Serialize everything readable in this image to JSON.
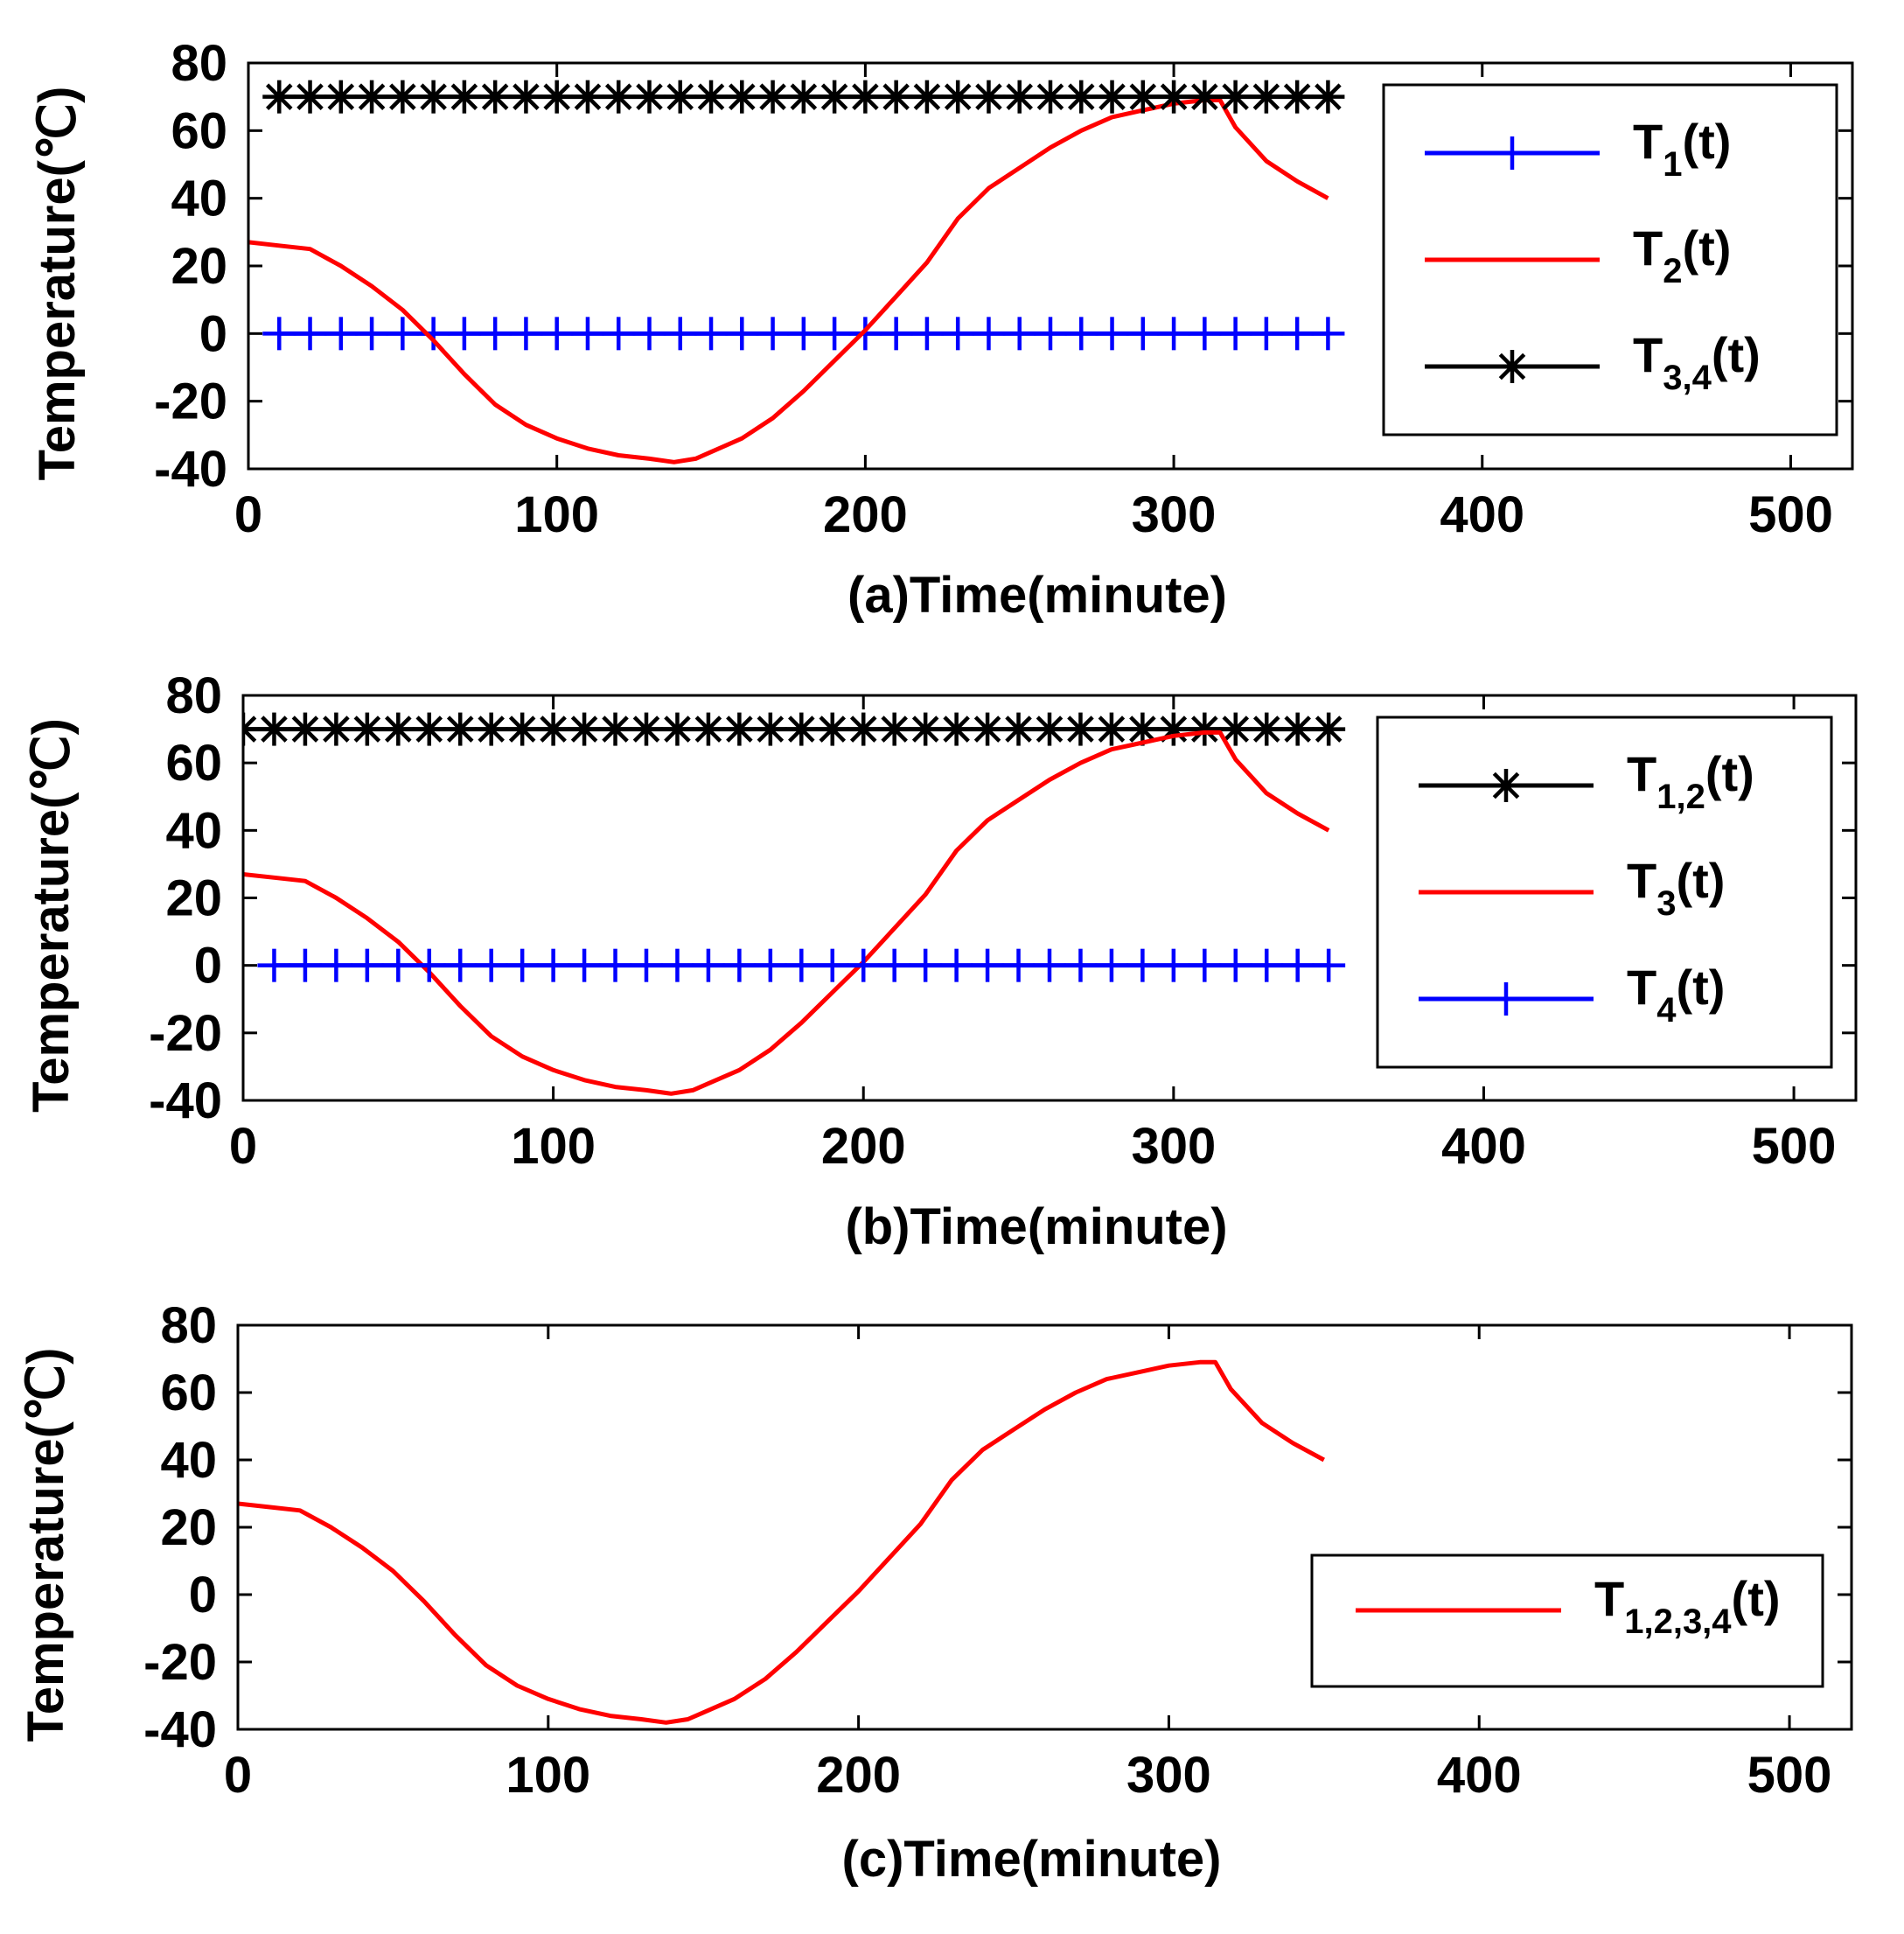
{
  "chart_data": [
    {
      "type": "line",
      "panel": "a",
      "xlabel": "(a)Time(minute)",
      "ylabel": "Temperature(℃)",
      "xlim": [
        0,
        520
      ],
      "ylim": [
        -40,
        80
      ],
      "xticks": [
        "0",
        "100",
        "200",
        "300",
        "400",
        "500"
      ],
      "yticks": [
        "80",
        "60",
        "40",
        "20",
        "0",
        "-20",
        "-40"
      ],
      "grid": false,
      "legend_position": "top-right",
      "series": [
        {
          "name_main": "T",
          "name_sub": "1",
          "name_tail": "(t)",
          "color": "#0000ff",
          "marker": "plus",
          "x": [
            10,
            350
          ],
          "y": [
            0,
            0
          ]
        },
        {
          "name_main": "T",
          "name_sub": "2",
          "name_tail": "(t)",
          "color": "#ff0000",
          "marker": "none",
          "x": [
            0,
            10,
            20,
            30,
            40,
            50,
            60,
            70,
            80,
            90,
            100,
            110,
            120,
            130,
            138,
            145,
            150,
            160,
            170,
            180,
            190,
            200,
            210,
            220,
            230,
            240,
            250,
            260,
            270,
            280,
            290,
            300,
            310,
            315,
            320,
            330,
            340,
            350
          ],
          "y": [
            27,
            26,
            25,
            20,
            14,
            7,
            -2,
            -12,
            -21,
            -27,
            -31,
            -34,
            -36,
            -37,
            -38,
            -37,
            -35,
            -31,
            -25,
            -17,
            -8,
            1,
            11,
            21,
            34,
            43,
            49,
            55,
            60,
            64,
            66,
            68,
            69,
            69,
            61,
            51,
            45,
            40
          ]
        },
        {
          "name_main": "T",
          "name_sub": "3,4",
          "name_tail": "(t)",
          "color": "#000000",
          "marker": "star",
          "x": [
            10,
            350
          ],
          "y": [
            70,
            70
          ]
        }
      ]
    },
    {
      "type": "line",
      "panel": "b",
      "xlabel": "(b)Time(minute)",
      "ylabel": "Temperature(℃)",
      "xlim": [
        0,
        520
      ],
      "ylim": [
        -40,
        80
      ],
      "xticks": [
        "0",
        "100",
        "200",
        "300",
        "400",
        "500"
      ],
      "yticks": [
        "80",
        "60",
        "40",
        "20",
        "0",
        "-20",
        "-40"
      ],
      "grid": false,
      "legend_position": "top-right",
      "series": [
        {
          "name_main": "T",
          "name_sub": "1,2",
          "name_tail": "(t)",
          "color": "#000000",
          "marker": "star",
          "x": [
            0,
            350
          ],
          "y": [
            70,
            70
          ]
        },
        {
          "name_main": "T",
          "name_sub": "3",
          "name_tail": "(t)",
          "color": "#ff0000",
          "marker": "none",
          "x": [
            0,
            10,
            20,
            30,
            40,
            50,
            60,
            70,
            80,
            90,
            100,
            110,
            120,
            130,
            138,
            145,
            150,
            160,
            170,
            180,
            190,
            200,
            210,
            220,
            230,
            240,
            250,
            260,
            270,
            280,
            290,
            300,
            310,
            315,
            320,
            330,
            340,
            350
          ],
          "y": [
            27,
            26,
            25,
            20,
            14,
            7,
            -2,
            -12,
            -21,
            -27,
            -31,
            -34,
            -36,
            -37,
            -38,
            -37,
            -35,
            -31,
            -25,
            -17,
            -8,
            1,
            11,
            21,
            34,
            43,
            49,
            55,
            60,
            64,
            66,
            68,
            69,
            69,
            61,
            51,
            45,
            40
          ]
        },
        {
          "name_main": "T",
          "name_sub": "4",
          "name_tail": "(t)",
          "color": "#0000ff",
          "marker": "plus",
          "x": [
            10,
            350
          ],
          "y": [
            0,
            0
          ]
        }
      ]
    },
    {
      "type": "line",
      "panel": "c",
      "xlabel": "(c)Time(minute)",
      "ylabel": "Temperature(℃)",
      "xlim": [
        0,
        520
      ],
      "ylim": [
        -40,
        80
      ],
      "xticks": [
        "0",
        "100",
        "200",
        "300",
        "400",
        "500"
      ],
      "yticks": [
        "80",
        "60",
        "40",
        "20",
        "0",
        "-20",
        "-40"
      ],
      "grid": false,
      "legend_position": "center-right",
      "series": [
        {
          "name_main": "T",
          "name_sub": "1,2,3,4",
          "name_tail": "(t)",
          "color": "#ff0000",
          "marker": "none",
          "x": [
            0,
            10,
            20,
            30,
            40,
            50,
            60,
            70,
            80,
            90,
            100,
            110,
            120,
            130,
            138,
            145,
            150,
            160,
            170,
            180,
            190,
            200,
            210,
            220,
            230,
            240,
            250,
            260,
            270,
            280,
            290,
            300,
            310,
            315,
            320,
            330,
            340,
            350
          ],
          "y": [
            27,
            26,
            25,
            20,
            14,
            7,
            -2,
            -12,
            -21,
            -27,
            -31,
            -34,
            -36,
            -37,
            -38,
            -37,
            -35,
            -31,
            -25,
            -17,
            -8,
            1,
            11,
            21,
            34,
            43,
            49,
            55,
            60,
            64,
            66,
            68,
            69,
            69,
            61,
            51,
            45,
            40
          ]
        }
      ]
    }
  ]
}
